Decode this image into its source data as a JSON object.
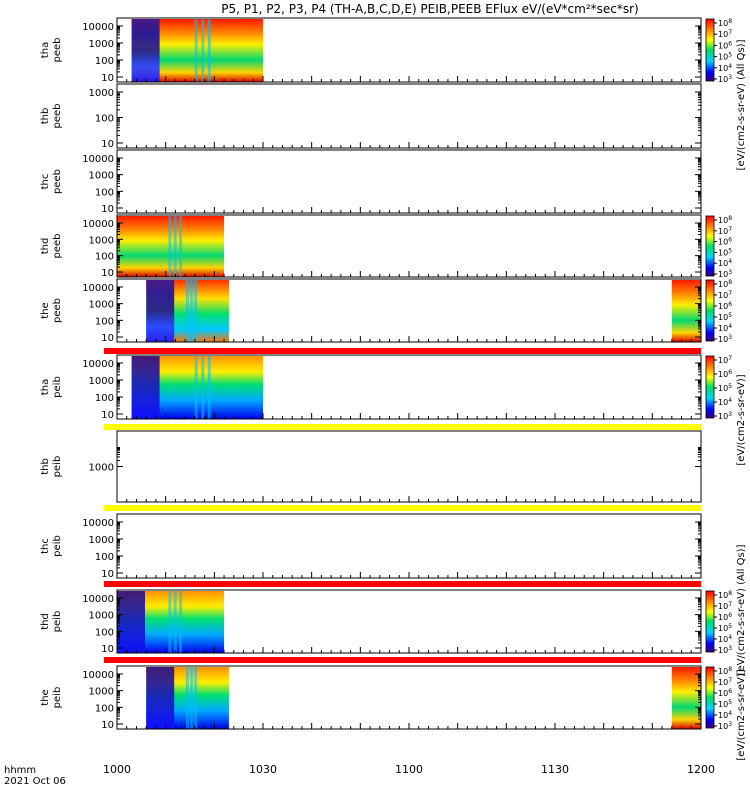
{
  "title": "P5, P1, P2, P3, P4 (TH-A,B,C,D,E) PEIB,PEEB EFlux eV/(eV*cm²*sec*sr)",
  "colorbar_units": "[eV/(cm2-s-sr-eV)]",
  "colorbar_units_all_qs": "[eV/(cm2-s-sr-eV) (All Qs)]",
  "time_axis": {
    "label_line1": "hhmm",
    "label_line2": "2021 Oct 06",
    "ticks": [
      "1000",
      "1030",
      "1100",
      "1130",
      "1200"
    ]
  },
  "chart_data": {
    "type": "heatmap",
    "x_range_hhmm": [
      "1000",
      "1200"
    ],
    "y_scale": "log",
    "panels": [
      {
        "probe": "tha",
        "quantity": "peeb",
        "ylabel": "tha peeb",
        "yticks": [
          "10",
          "100",
          "1000",
          "10000"
        ],
        "colorbar": {
          "min_exp": 3,
          "max_exp": 8
        },
        "coverage_hhmm": [
          [
            "1003",
            "1030"
          ]
        ],
        "has_data": true
      },
      {
        "probe": "thb",
        "quantity": "peeb",
        "ylabel": "thb peeb",
        "yticks": [
          "10",
          "100",
          "1000"
        ],
        "colorbar": null,
        "coverage_hhmm": [],
        "has_data": false
      },
      {
        "probe": "thc",
        "quantity": "peeb",
        "ylabel": "thc peeb",
        "yticks": [
          "10",
          "100",
          "1000",
          "10000"
        ],
        "colorbar": null,
        "coverage_hhmm": [],
        "has_data": false
      },
      {
        "probe": "thd",
        "quantity": "peeb",
        "ylabel": "thd peeb",
        "yticks": [
          "10",
          "100",
          "1000",
          "10000"
        ],
        "colorbar": {
          "min_exp": 3,
          "max_exp": 8
        },
        "coverage_hhmm": [
          [
            "1000",
            "1022"
          ]
        ],
        "has_data": true
      },
      {
        "probe": "the",
        "quantity": "peeb",
        "ylabel": "the peeb",
        "yticks": [
          "10",
          "100",
          "1000",
          "10000"
        ],
        "colorbar": {
          "min_exp": 3,
          "max_exp": 8
        },
        "coverage_hhmm": [
          [
            "1006",
            "1023"
          ],
          [
            "1154",
            "1200"
          ]
        ],
        "has_data": true
      },
      {
        "probe": "tha",
        "quantity": "peib",
        "ylabel": "tha peib",
        "yticks": [
          "10",
          "100",
          "1000",
          "10000"
        ],
        "colorbar": {
          "min_exp": 3,
          "max_exp": 7
        },
        "coverage_hhmm": [
          [
            "1003",
            "1030"
          ]
        ],
        "has_data": true
      },
      {
        "probe": "thb",
        "quantity": "peib",
        "ylabel": "thb peib",
        "yticks": [
          "1000"
        ],
        "colorbar": null,
        "coverage_hhmm": [],
        "has_data": false
      },
      {
        "probe": "thc",
        "quantity": "peib",
        "ylabel": "thc peib",
        "yticks": [
          "10",
          "100",
          "1000",
          "10000"
        ],
        "colorbar": null,
        "coverage_hhmm": [],
        "has_data": false
      },
      {
        "probe": "thd",
        "quantity": "peib",
        "ylabel": "thd peib",
        "yticks": [
          "10",
          "100",
          "1000",
          "10000"
        ],
        "colorbar": {
          "min_exp": 3,
          "max_exp": 8
        },
        "coverage_hhmm": [
          [
            "1000",
            "1022"
          ]
        ],
        "has_data": true
      },
      {
        "probe": "the",
        "quantity": "peib",
        "ylabel": "the peib",
        "yticks": [
          "10",
          "100",
          "1000",
          "10000"
        ],
        "colorbar": {
          "min_exp": 3,
          "max_exp": 8
        },
        "coverage_hhmm": [
          [
            "1006",
            "1023"
          ],
          [
            "1154",
            "1200"
          ]
        ],
        "has_data": true
      }
    ]
  }
}
